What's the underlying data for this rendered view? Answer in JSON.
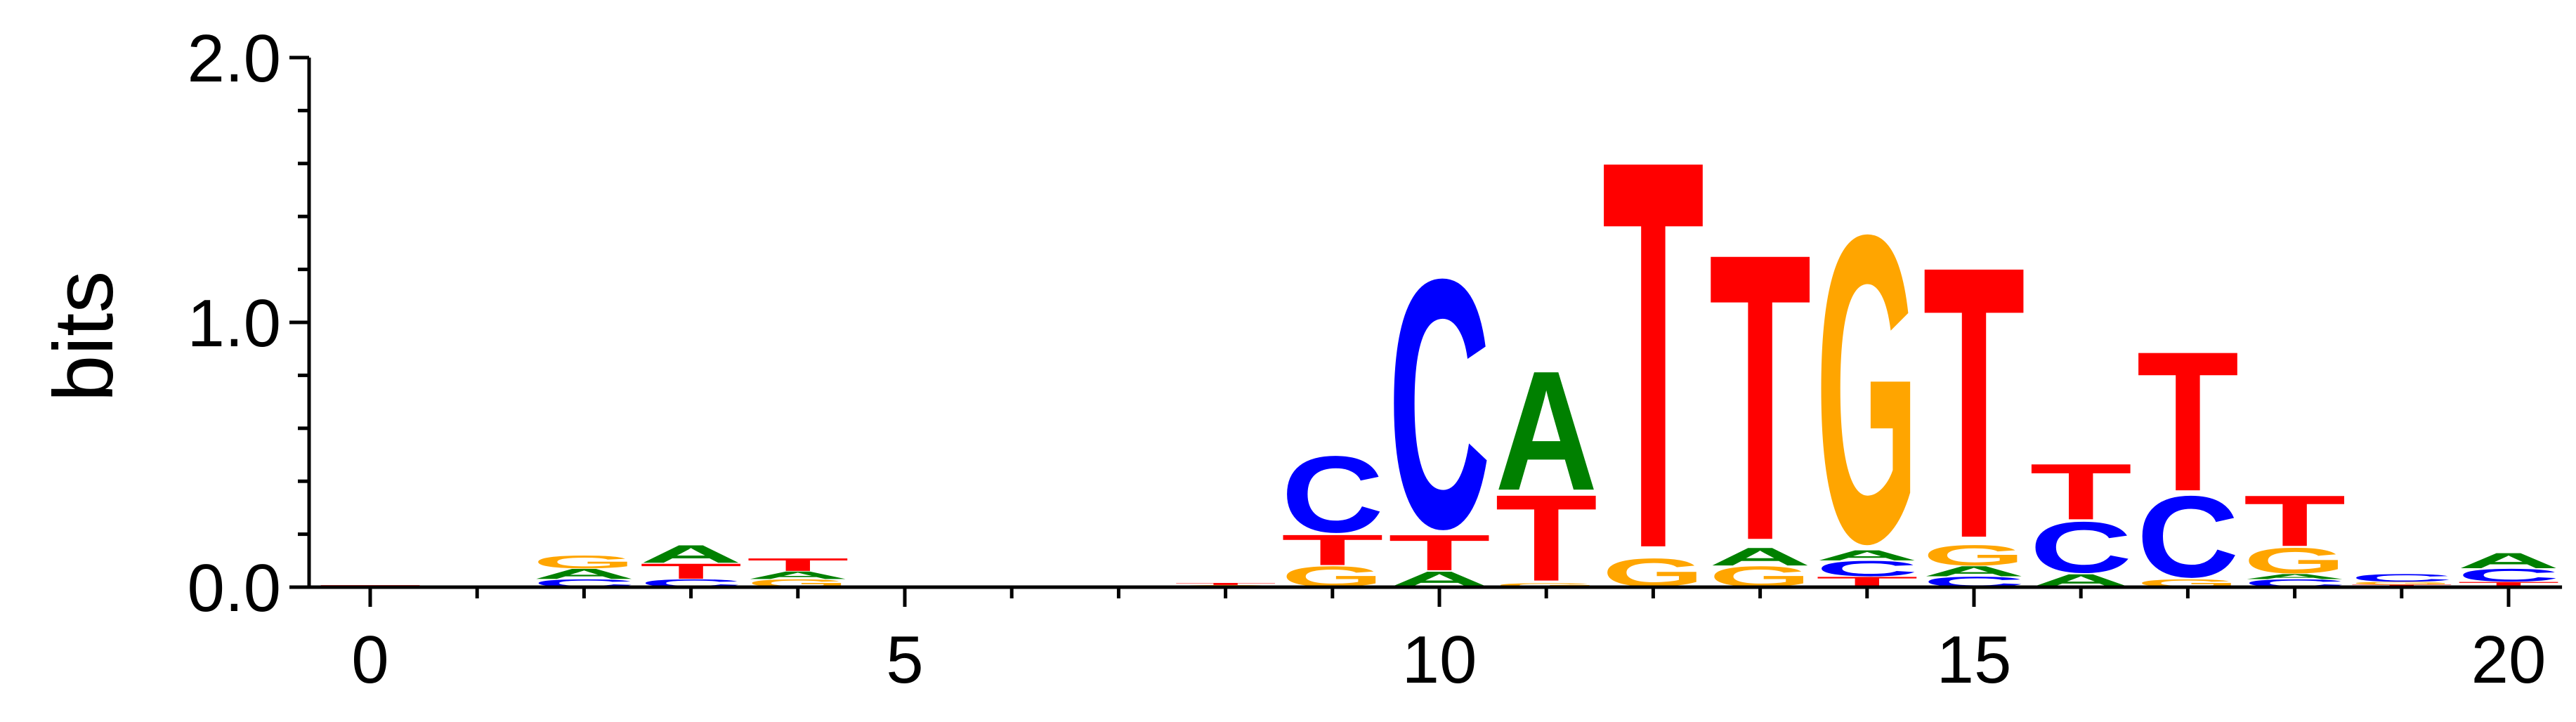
{
  "colors": {
    "A": "#008000",
    "C": "#0000ff",
    "G": "#ffa500",
    "T": "#ff0000"
  },
  "chart_data": {
    "type": "sequence-logo",
    "ylabel": "bits",
    "ylim": [
      0,
      2.0
    ],
    "y_tick_labels": [
      {
        "value": 0.0,
        "label": "0.0"
      },
      {
        "value": 1.0,
        "label": "1.0"
      },
      {
        "value": 2.0,
        "label": "2.0"
      }
    ],
    "y_minor_ticks": [
      0.2,
      0.4,
      0.6,
      0.8,
      1.2,
      1.4,
      1.6,
      1.8
    ],
    "xlim": [
      -0.6,
      20.5
    ],
    "x_tick_labels": [
      {
        "value": 0,
        "label": "0"
      },
      {
        "value": 5,
        "label": "5"
      },
      {
        "value": 10,
        "label": "10"
      },
      {
        "value": 15,
        "label": "15"
      },
      {
        "value": 20,
        "label": "20"
      }
    ],
    "x_minor_ticks": [
      1,
      2,
      3,
      4,
      6,
      7,
      8,
      9,
      11,
      12,
      13,
      14,
      16,
      17,
      18,
      19
    ],
    "positions": [
      {
        "pos": 0,
        "stack": [
          {
            "base": "T",
            "height": 0.008
          }
        ]
      },
      {
        "pos": 1,
        "stack": []
      },
      {
        "pos": 2,
        "stack": [
          {
            "base": "C",
            "height": 0.03
          },
          {
            "base": "A",
            "height": 0.04
          },
          {
            "base": "G",
            "height": 0.05
          }
        ]
      },
      {
        "pos": 3,
        "stack": [
          {
            "base": "C",
            "height": 0.03
          },
          {
            "base": "T",
            "height": 0.06
          },
          {
            "base": "A",
            "height": 0.07
          }
        ]
      },
      {
        "pos": 4,
        "stack": [
          {
            "base": "G",
            "height": 0.03
          },
          {
            "base": "A",
            "height": 0.03
          },
          {
            "base": "T",
            "height": 0.05
          }
        ]
      },
      {
        "pos": 5,
        "stack": []
      },
      {
        "pos": 6,
        "stack": []
      },
      {
        "pos": 7,
        "stack": []
      },
      {
        "pos": 8,
        "stack": [
          {
            "base": "G",
            "height": 0.008
          },
          {
            "base": "T",
            "height": 0.008
          }
        ]
      },
      {
        "pos": 9,
        "stack": [
          {
            "base": "G",
            "height": 0.08
          },
          {
            "base": "T",
            "height": 0.12
          },
          {
            "base": "C",
            "height": 0.3
          }
        ]
      },
      {
        "pos": 10,
        "stack": [
          {
            "base": "A",
            "height": 0.06
          },
          {
            "base": "T",
            "height": 0.14
          },
          {
            "base": "C",
            "height": 0.98
          }
        ]
      },
      {
        "pos": 11,
        "stack": [
          {
            "base": "G",
            "height": 0.015
          },
          {
            "base": "T",
            "height": 0.34
          },
          {
            "base": "A",
            "height": 0.47
          }
        ]
      },
      {
        "pos": 12,
        "stack": [
          {
            "base": "G",
            "height": 0.11
          },
          {
            "base": "T",
            "height": 1.53
          }
        ]
      },
      {
        "pos": 13,
        "stack": [
          {
            "base": "G",
            "height": 0.08
          },
          {
            "base": "A",
            "height": 0.07
          },
          {
            "base": "T",
            "height": 1.13
          }
        ]
      },
      {
        "pos": 14,
        "stack": [
          {
            "base": "T",
            "height": 0.04
          },
          {
            "base": "C",
            "height": 0.06
          },
          {
            "base": "A",
            "height": 0.04
          },
          {
            "base": "G",
            "height": 1.21
          }
        ]
      },
      {
        "pos": 15,
        "stack": [
          {
            "base": "C",
            "height": 0.04
          },
          {
            "base": "A",
            "height": 0.04
          },
          {
            "base": "G",
            "height": 0.08
          },
          {
            "base": "T",
            "height": 1.07
          }
        ]
      },
      {
        "pos": 16,
        "stack": [
          {
            "base": "A",
            "height": 0.05
          },
          {
            "base": "C",
            "height": 0.2
          },
          {
            "base": "T",
            "height": 0.22
          }
        ]
      },
      {
        "pos": 17,
        "stack": [
          {
            "base": "G",
            "height": 0.03
          },
          {
            "base": "C",
            "height": 0.32
          },
          {
            "base": "T",
            "height": 0.55
          }
        ]
      },
      {
        "pos": 18,
        "stack": [
          {
            "base": "C",
            "height": 0.03
          },
          {
            "base": "A",
            "height": 0.02
          },
          {
            "base": "G",
            "height": 0.1
          },
          {
            "base": "T",
            "height": 0.2
          }
        ]
      },
      {
        "pos": 19,
        "stack": [
          {
            "base": "T",
            "height": 0.01
          },
          {
            "base": "G",
            "height": 0.01
          },
          {
            "base": "C",
            "height": 0.03
          }
        ]
      },
      {
        "pos": 20,
        "stack": [
          {
            "base": "T",
            "height": 0.02
          },
          {
            "base": "C",
            "height": 0.05
          },
          {
            "base": "A",
            "height": 0.06
          }
        ]
      }
    ]
  }
}
